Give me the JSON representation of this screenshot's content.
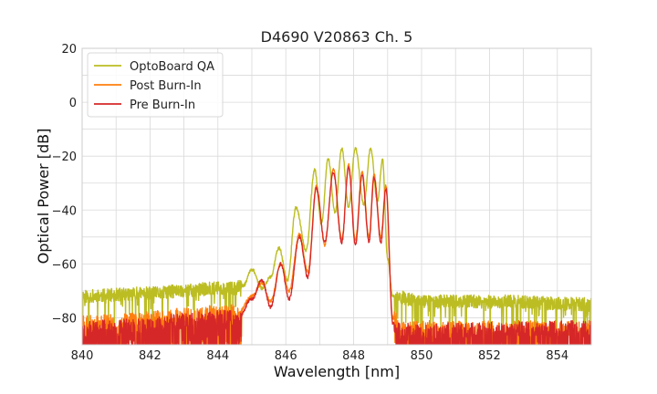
{
  "chart_data": {
    "type": "line",
    "title": "D4690 V20863 Ch. 5",
    "xlabel": "Wavelength [nm]",
    "ylabel": "Optical Power [dB]",
    "xlim": [
      840,
      855
    ],
    "ylim": [
      -90,
      20
    ],
    "xticks": [
      840,
      842,
      844,
      846,
      848,
      850,
      852,
      854
    ],
    "yticks": [
      20,
      0,
      -20,
      -40,
      -60,
      -80
    ],
    "x_tick_labels": [
      "840",
      "842",
      "844",
      "846",
      "848",
      "850",
      "852",
      "854"
    ],
    "y_tick_labels": [
      "20",
      "0",
      "−20",
      "−40",
      "−60",
      "−80"
    ],
    "grid": true,
    "legend_position": "upper-left",
    "series": [
      {
        "name": "OptoBoard QA",
        "color": "#bcbd22",
        "noise_floor_left": -72,
        "noise_floor_right": -74,
        "points": [
          [
            840.0,
            -72
          ],
          [
            842.0,
            -71
          ],
          [
            843.0,
            -70
          ],
          [
            844.0,
            -69
          ],
          [
            844.5,
            -69
          ],
          [
            844.75,
            -68
          ],
          [
            845.0,
            -62
          ],
          [
            845.3,
            -69
          ],
          [
            845.55,
            -65
          ],
          [
            845.8,
            -54
          ],
          [
            846.05,
            -66
          ],
          [
            846.3,
            -39
          ],
          [
            846.6,
            -55
          ],
          [
            846.85,
            -25
          ],
          [
            847.05,
            -45
          ],
          [
            847.25,
            -21
          ],
          [
            847.45,
            -41
          ],
          [
            847.65,
            -17
          ],
          [
            847.85,
            -39
          ],
          [
            848.05,
            -17
          ],
          [
            848.3,
            -38
          ],
          [
            848.5,
            -17
          ],
          [
            848.7,
            -37
          ],
          [
            848.85,
            -21
          ],
          [
            849.0,
            -58
          ],
          [
            849.15,
            -72
          ],
          [
            850.0,
            -74
          ],
          [
            852.0,
            -74
          ],
          [
            855.0,
            -75
          ]
        ]
      },
      {
        "name": "Post Burn-In",
        "color": "#ff7f0e",
        "noise_floor_left": -82,
        "noise_floor_right": -84,
        "points": [
          [
            840.0,
            -82
          ],
          [
            844.6,
            -78
          ],
          [
            845.0,
            -72
          ],
          [
            845.3,
            -67
          ],
          [
            845.55,
            -74
          ],
          [
            845.85,
            -60
          ],
          [
            846.1,
            -70
          ],
          [
            846.4,
            -49
          ],
          [
            846.65,
            -63
          ],
          [
            846.9,
            -31
          ],
          [
            847.15,
            -53
          ],
          [
            847.4,
            -25
          ],
          [
            847.65,
            -51
          ],
          [
            847.85,
            -23
          ],
          [
            848.05,
            -51
          ],
          [
            848.25,
            -26
          ],
          [
            848.45,
            -50
          ],
          [
            848.6,
            -27
          ],
          [
            848.8,
            -50
          ],
          [
            848.95,
            -31
          ],
          [
            849.15,
            -80
          ],
          [
            849.4,
            -84
          ],
          [
            855.0,
            -84
          ]
        ]
      },
      {
        "name": "Pre Burn-In",
        "color": "#d62728",
        "noise_floor_left": -84,
        "noise_floor_right": -84,
        "points": [
          [
            840.0,
            -84
          ],
          [
            844.6,
            -80
          ],
          [
            845.0,
            -73
          ],
          [
            845.3,
            -66
          ],
          [
            845.55,
            -76
          ],
          [
            845.85,
            -60
          ],
          [
            846.1,
            -73
          ],
          [
            846.4,
            -50
          ],
          [
            846.65,
            -65
          ],
          [
            846.9,
            -32
          ],
          [
            847.15,
            -52
          ],
          [
            847.4,
            -26
          ],
          [
            847.65,
            -52
          ],
          [
            847.85,
            -24
          ],
          [
            848.05,
            -53
          ],
          [
            848.25,
            -27
          ],
          [
            848.45,
            -52
          ],
          [
            848.6,
            -28
          ],
          [
            848.8,
            -52
          ],
          [
            848.95,
            -32
          ],
          [
            849.15,
            -82
          ],
          [
            849.4,
            -85
          ],
          [
            855.0,
            -84
          ]
        ]
      }
    ]
  }
}
